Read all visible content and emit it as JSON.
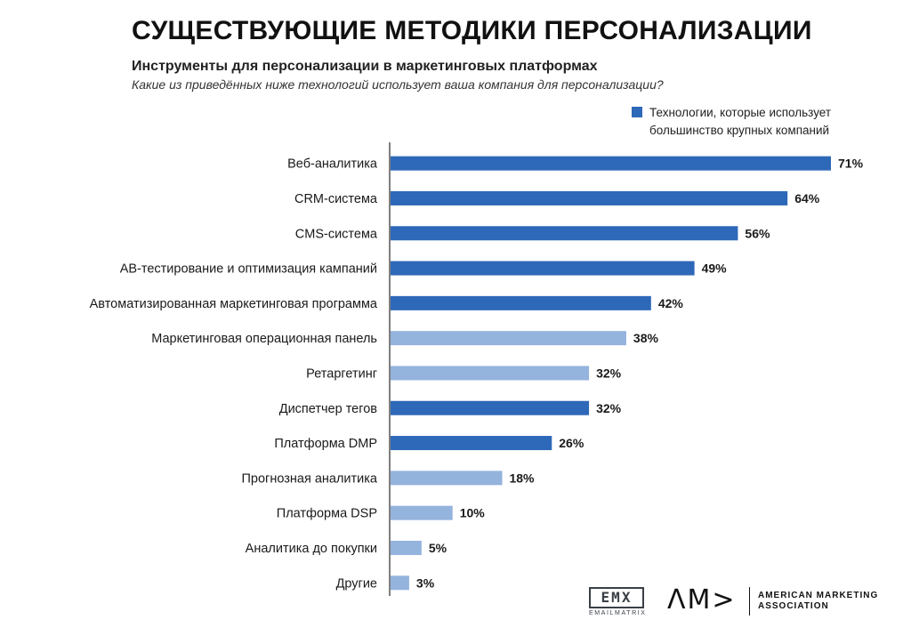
{
  "header": {
    "title": "СУЩЕСТВУЮЩИЕ МЕТОДИКИ ПЕРСОНАЛИЗАЦИИ",
    "subtitle": "Инструменты для персонализации в маркетинговых платформах",
    "question": "Какие из приведённых ниже технологий использует ваша компания для персонализации?"
  },
  "legend": {
    "label": "Технологии, которые использует большинство крупных компаний",
    "color": "#2e68b8"
  },
  "colors": {
    "highlight": "#2e68b8",
    "other": "#94b3dd",
    "axis": "#555555"
  },
  "chart_data": {
    "type": "bar",
    "orientation": "horizontal",
    "xlim": [
      0,
      71
    ],
    "categories": [
      "Веб-аналитика",
      "CRM-система",
      "CMS-система",
      "АВ-тестирование и оптимизация кампаний",
      "Автоматизированная маркетинговая программа",
      "Маркетинговая операционная панель",
      "Ретаргетинг",
      "Диспетчер тегов",
      "Платформа DMP",
      "Прогнозная аналитика",
      "Платформа DSP",
      "Аналитика до покупки",
      "Другие"
    ],
    "values": [
      71,
      64,
      56,
      49,
      42,
      38,
      32,
      32,
      26,
      18,
      10,
      5,
      3
    ],
    "value_labels": [
      "71%",
      "64%",
      "56%",
      "49%",
      "42%",
      "38%",
      "32%",
      "32%",
      "26%",
      "18%",
      "10%",
      "5%",
      "3%"
    ],
    "highlighted": [
      true,
      true,
      true,
      true,
      true,
      false,
      false,
      true,
      true,
      false,
      false,
      false,
      false
    ]
  },
  "logos": {
    "emx_mark": "EMX",
    "emx_name": "EMAILMATRIX",
    "ama_mark": "ΛM>",
    "ama_name_line1": "AMERICAN MARKETING",
    "ama_name_line2": "ASSOCIATION"
  }
}
